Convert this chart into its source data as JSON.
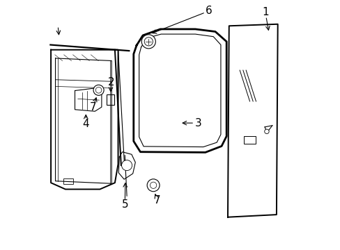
{
  "background_color": "#ffffff",
  "line_color": "#000000",
  "label_fontsize": 11
}
